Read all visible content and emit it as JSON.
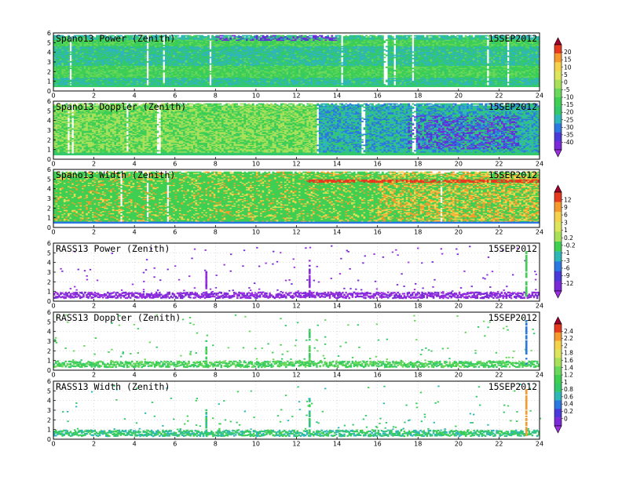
{
  "chart_data": [
    {
      "type": "heatmap",
      "title": "Spano13 Power (Zenith)",
      "date": "15SEP2012",
      "x_ticks": [
        "0",
        "2",
        "4",
        "6",
        "8",
        "10",
        "12",
        "14",
        "16",
        "18",
        "20",
        "22",
        "24"
      ],
      "xlim": [
        0,
        24
      ],
      "y_ticks": [
        "0",
        "1",
        "2",
        "3",
        "4",
        "5",
        "6"
      ],
      "ylim": [
        0,
        6
      ],
      "colorbar": 0,
      "style": "dense",
      "field": "mostly green (-15 to -25) with lighter yellow-green bands near 1.5-2.5 and 5 km, blue spots near top around 8-14"
    },
    {
      "type": "heatmap",
      "title": "Spano13 Doppler (Zenith)",
      "date": "15SEP2012",
      "x_ticks": [
        "0",
        "2",
        "4",
        "6",
        "8",
        "10",
        "12",
        "14",
        "16",
        "18",
        "20",
        "22",
        "24"
      ],
      "xlim": [
        0,
        24
      ],
      "y_ticks": [
        "0",
        "1",
        "2",
        "3",
        "4",
        "5",
        "6"
      ],
      "ylim": [
        0,
        6
      ],
      "colorbar": 0,
      "style": "dense",
      "field": "green / light green before 13, blue-cyan after 13 with dark blue patches near 18-23"
    },
    {
      "type": "heatmap",
      "title": "Spano13 Width (Zenith)",
      "date": "15SEP2012",
      "x_ticks": [
        "0",
        "2",
        "4",
        "6",
        "8",
        "10",
        "12",
        "14",
        "16",
        "18",
        "20",
        "22",
        "24"
      ],
      "xlim": [
        0,
        24
      ],
      "y_ticks": [
        "0",
        "1",
        "2",
        "3",
        "4",
        "5",
        "6"
      ],
      "ylim": [
        0,
        6
      ],
      "colorbar": 1,
      "style": "dense",
      "field": "green base with yellow/orange/red speckle, a red line near 4.8 km from 12.5 to 24"
    },
    {
      "type": "heatmap",
      "title": "RASS13 Power (Zenith)",
      "date": "15SEP2012",
      "x_ticks": [
        "0",
        "2",
        "4",
        "6",
        "8",
        "10",
        "12",
        "14",
        "16",
        "18",
        "20",
        "22",
        "24"
      ],
      "xlim": [
        0,
        24
      ],
      "y_ticks": [
        "0",
        "1",
        "2",
        "3",
        "4",
        "5",
        "6"
      ],
      "ylim": [
        0,
        6
      ],
      "colorbar": 1,
      "style": "sparse",
      "field": "purple band near 0.5-1 km, sparse purple dots above, spikes near 7.5, 12.5, 23.3"
    },
    {
      "type": "heatmap",
      "title": "RASS13 Doppler (Zenith)",
      "date": "15SEP2012",
      "x_ticks": [
        "0",
        "2",
        "4",
        "6",
        "8",
        "10",
        "12",
        "14",
        "16",
        "18",
        "20",
        "22",
        "24"
      ],
      "xlim": [
        0,
        24
      ],
      "y_ticks": [
        "0",
        "1",
        "2",
        "3",
        "4",
        "5",
        "6"
      ],
      "ylim": [
        0,
        6
      ],
      "colorbar": 2,
      "style": "sparse",
      "field": "green band near 0.5-1 km, sparse green dots above, blue spike near 23.3"
    },
    {
      "type": "heatmap",
      "title": "RASS13 Width (Zenith)",
      "date": "15SEP2012",
      "x_ticks": [
        "0",
        "2",
        "4",
        "6",
        "8",
        "10",
        "12",
        "14",
        "16",
        "18",
        "20",
        "22",
        "24"
      ],
      "xlim": [
        0,
        24
      ],
      "y_ticks": [
        "0",
        "1",
        "2",
        "3",
        "4",
        "5",
        "6"
      ],
      "ylim": [
        0,
        6
      ],
      "colorbar": 2,
      "style": "sparse",
      "field": "green/cyan band near 0.5-1 km, sparse green dots above, orange spike near 23.3"
    }
  ],
  "colorbars": [
    {
      "name": "power-doppler-scale",
      "labels": [
        "20",
        "15",
        "10",
        "5",
        "0",
        "-5",
        "-10",
        "-15",
        "-20",
        "-25",
        "-30",
        "-35",
        "-40"
      ],
      "colors": [
        "#a4002e",
        "#e63a1f",
        "#f59a2c",
        "#f5d24b",
        "#dce55b",
        "#a8e05a",
        "#6ad85a",
        "#3fcf52",
        "#33c96b",
        "#2fb6b8",
        "#2b78e0",
        "#4a3ad8",
        "#7a2ad6",
        "#9b2fe0"
      ]
    },
    {
      "name": "width-scale",
      "labels": [
        "12",
        "9",
        "6",
        "3",
        "1",
        "0.2",
        "-0.2",
        "-1",
        "-3",
        "-6",
        "-9",
        "-12"
      ],
      "colors": [
        "#a4002e",
        "#e63a1f",
        "#f59a2c",
        "#f5d24b",
        "#dce55b",
        "#a8e05a",
        "#3fcf52",
        "#2fb6b8",
        "#2b78e0",
        "#4a3ad8",
        "#7a2ad6",
        "#9b2fe0"
      ]
    },
    {
      "name": "rass-scale",
      "labels": [
        "2.4",
        "2.2",
        "2",
        "1.8",
        "1.6",
        "1.4",
        "1.2",
        "1",
        "0.8",
        "0.6",
        "0.4",
        "0.2",
        "0"
      ],
      "colors": [
        "#a4002e",
        "#e63a1f",
        "#f59a2c",
        "#f5d24b",
        "#dce55b",
        "#a8e05a",
        "#6ad85a",
        "#3fcf52",
        "#33c96b",
        "#2fb6b8",
        "#2b78e0",
        "#4a3ad8",
        "#7a2ad6",
        "#9b2fe0"
      ]
    }
  ]
}
